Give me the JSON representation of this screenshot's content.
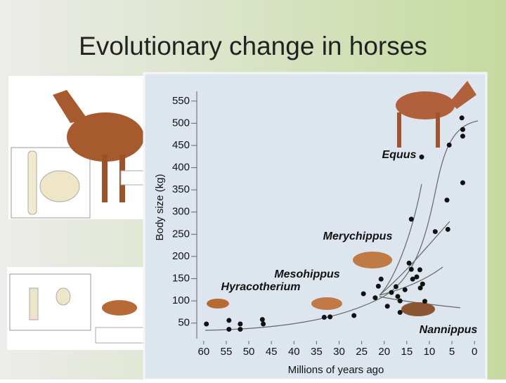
{
  "title": "Evolutionary change in horses",
  "chart_data": {
    "type": "scatter",
    "ylabel": "Body size (kg)",
    "xlabel": "Millions of years ago",
    "xlim": [
      62,
      -2
    ],
    "ylim": [
      10,
      575
    ],
    "xticks": [
      60,
      55,
      50,
      45,
      40,
      35,
      30,
      25,
      20,
      15,
      10,
      5,
      0
    ],
    "yticks": [
      50,
      100,
      150,
      200,
      250,
      300,
      350,
      400,
      450,
      500,
      550
    ],
    "color": "#111111",
    "annotations": [
      "Equus",
      "Merychippus",
      "Mesohippus",
      "Hyracotherium",
      "Nannippus"
    ],
    "x": [
      59.4,
      54.4,
      54.4,
      51.9,
      51.9,
      47,
      46.8,
      33.3,
      32,
      26.7,
      24.6,
      22,
      21.3,
      20.7,
      19.3,
      18.4,
      17.4,
      17,
      16.5,
      16.5,
      15.4,
      14.5,
      14,
      14,
      13.7,
      12.8,
      12.1,
      12,
      11.5,
      11.7,
      11,
      8.7,
      6.1,
      5.9,
      5.6,
      2.8,
      2.6,
      2.6,
      2.6
    ],
    "values": [
      48,
      56,
      36,
      48,
      36,
      58,
      48,
      63,
      64,
      67,
      116,
      107,
      133,
      149,
      88,
      119,
      132,
      110,
      100,
      74,
      125,
      185,
      284,
      171,
      149,
      154,
      170,
      129,
      138,
      424,
      99,
      256,
      327,
      261,
      451,
      512,
      471,
      486,
      366
    ]
  }
}
